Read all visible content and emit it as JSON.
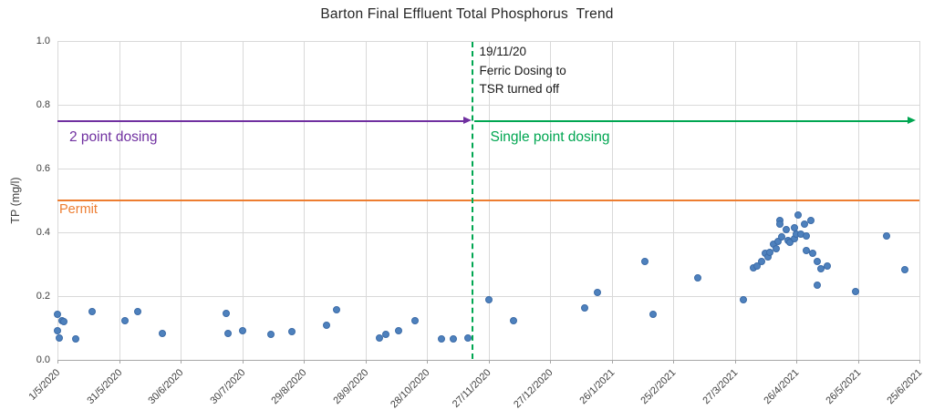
{
  "chart_data": {
    "type": "scatter",
    "title": "Barton Final Effluent Total Phosphorus  Trend",
    "ylabel": "TP (mg/l)",
    "xlabel": "",
    "ylim": [
      0,
      1.0
    ],
    "y_tick_labels": [
      "1.0",
      "0.8",
      "0.6",
      "0.4",
      "0.2",
      "0.0"
    ],
    "x_tick_labels": [
      "1/5/2020",
      "31/5/2020",
      "30/6/2020",
      "30/7/2020",
      "29/8/2020",
      "28/9/2020",
      "28/10/2020",
      "27/11/2020",
      "27/12/2020",
      "26/1/2021",
      "25/2/2021",
      "27/3/2021",
      "26/4/2021",
      "26/5/2021",
      "25/6/2021"
    ],
    "x_tick_interval_days": 30,
    "x_total_days": 420,
    "grid": true,
    "legend": "none",
    "marker_color": "#4e81bd",
    "points_format": "[days since 1/5/2020, TP mg/l]",
    "points": [
      [
        0,
        0.143
      ],
      [
        0,
        0.091
      ],
      [
        1,
        0.069
      ],
      [
        2,
        0.123
      ],
      [
        3,
        0.12
      ],
      [
        9,
        0.066
      ],
      [
        17,
        0.151
      ],
      [
        33,
        0.123
      ],
      [
        39,
        0.151
      ],
      [
        51,
        0.083
      ],
      [
        82,
        0.146
      ],
      [
        83,
        0.083
      ],
      [
        90,
        0.091
      ],
      [
        104,
        0.081
      ],
      [
        114,
        0.089
      ],
      [
        131,
        0.109
      ],
      [
        136,
        0.156
      ],
      [
        157,
        0.069
      ],
      [
        160,
        0.08
      ],
      [
        166,
        0.091
      ],
      [
        174,
        0.123
      ],
      [
        187,
        0.066
      ],
      [
        193,
        0.066
      ],
      [
        200,
        0.07
      ],
      [
        210,
        0.19
      ],
      [
        222,
        0.123
      ],
      [
        257,
        0.162
      ],
      [
        263,
        0.212
      ],
      [
        286,
        0.31
      ],
      [
        290,
        0.143
      ],
      [
        312,
        0.257
      ],
      [
        334,
        0.19
      ],
      [
        339,
        0.288
      ],
      [
        341,
        0.295
      ],
      [
        343,
        0.31
      ],
      [
        345,
        0.333
      ],
      [
        346,
        0.324
      ],
      [
        347,
        0.338
      ],
      [
        349,
        0.362
      ],
      [
        350,
        0.348
      ],
      [
        351,
        0.371
      ],
      [
        352,
        0.438
      ],
      [
        352,
        0.427
      ],
      [
        353,
        0.386
      ],
      [
        355,
        0.41
      ],
      [
        356,
        0.373
      ],
      [
        357,
        0.369
      ],
      [
        359,
        0.379
      ],
      [
        359,
        0.414
      ],
      [
        360,
        0.393
      ],
      [
        361,
        0.454
      ],
      [
        362,
        0.393
      ],
      [
        364,
        0.427
      ],
      [
        365,
        0.39
      ],
      [
        365,
        0.343
      ],
      [
        367,
        0.436
      ],
      [
        368,
        0.333
      ],
      [
        370,
        0.31
      ],
      [
        370,
        0.233
      ],
      [
        372,
        0.286
      ],
      [
        375,
        0.295
      ],
      [
        389,
        0.214
      ],
      [
        404,
        0.39
      ],
      [
        413,
        0.283
      ]
    ],
    "permit_line": {
      "label": "Permit",
      "value": 0.5,
      "color": "#ed7d31"
    },
    "annotations": {
      "dosing_change_day": 202,
      "event_label_lines": [
        "19/11/20",
        "Ferric Dosing to",
        "TSR turned off"
      ],
      "arrow_y_value": 0.75,
      "phase1": {
        "label": "2 point dosing",
        "color": "#7030a0"
      },
      "phase2": {
        "label": "Single point dosing",
        "color": "#00a651"
      }
    }
  }
}
